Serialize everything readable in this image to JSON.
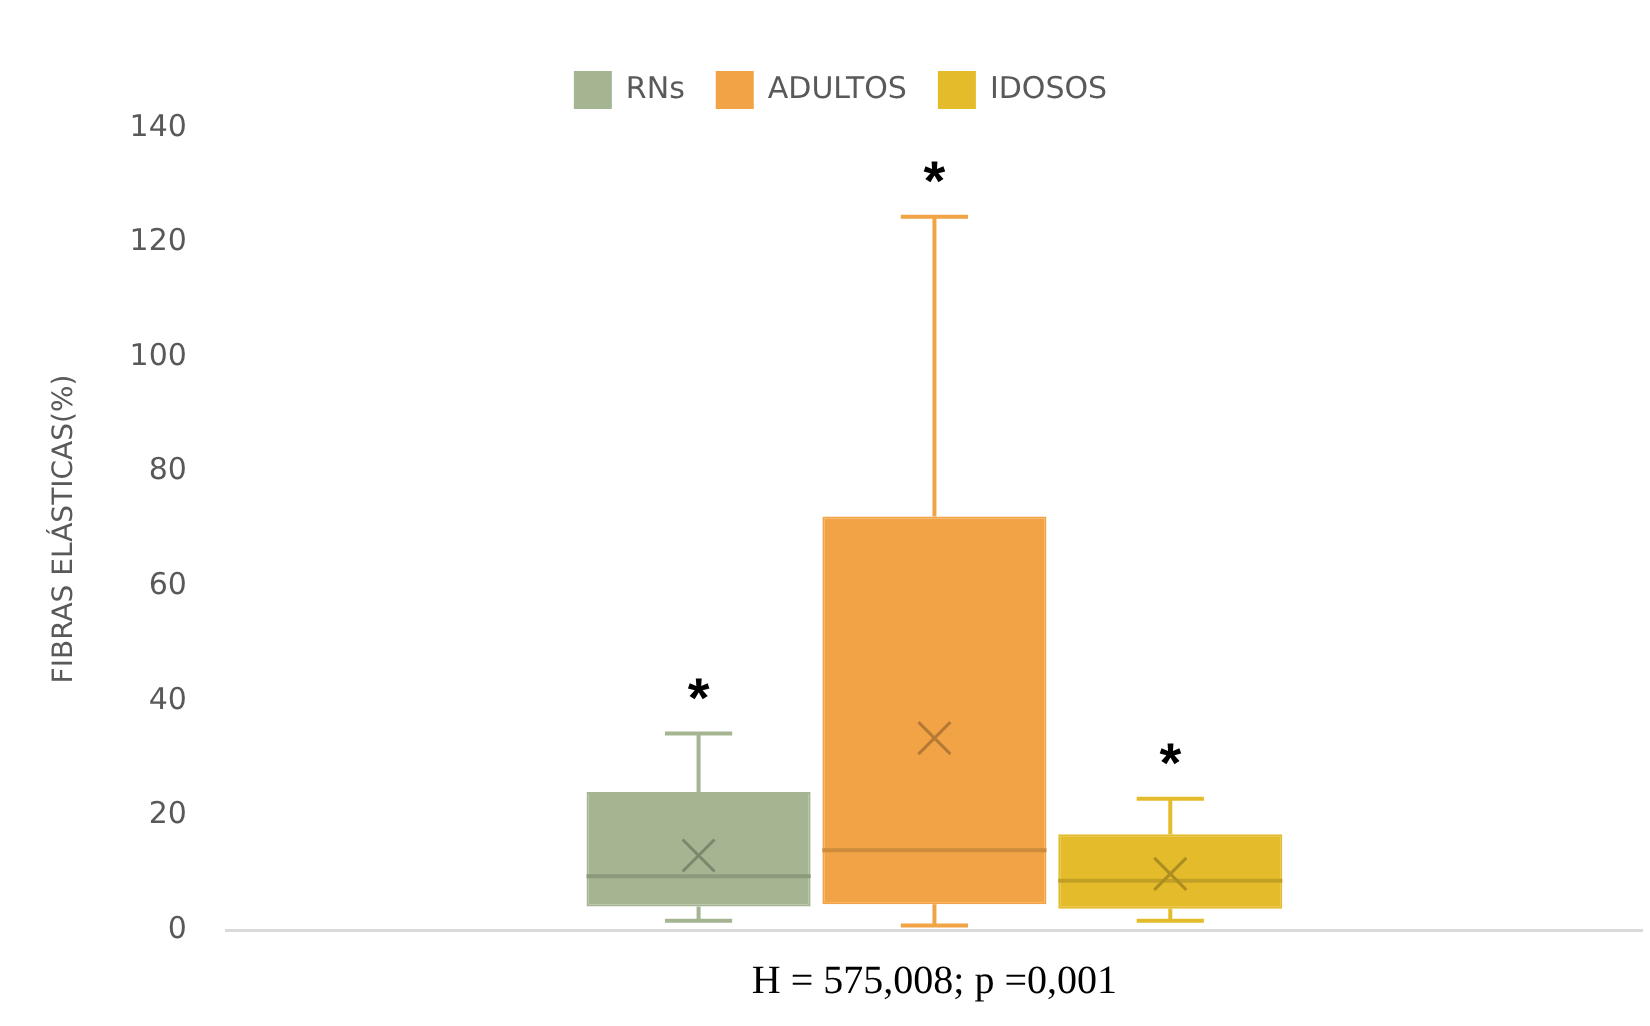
{
  "chart_data": {
    "type": "box",
    "categories": [
      null
    ],
    "ylabel": "FIBRAS ELÁSTICAS(%)",
    "xlabel": "H = 575,008; p =0,001",
    "ylim": [
      0,
      140
    ],
    "yticks": [
      0,
      20,
      40,
      60,
      80,
      100,
      120,
      140
    ],
    "grid": false,
    "legend": "top",
    "tick_labels": "y",
    "annotations": [
      "*",
      "*",
      "*"
    ],
    "series": [
      {
        "name": "RNs",
        "color": "#a5b592",
        "boxes": [
          {
            "low": 1.6,
            "q1": 4.1,
            "median": 9.4,
            "q3": 24.1,
            "high": 34.3,
            "mean": 13
          }
        ]
      },
      {
        "name": "ADULTOS",
        "color": "#f1a346",
        "boxes": [
          {
            "low": 0.8,
            "q1": 4.5,
            "median": 13.9,
            "q3": 72.2,
            "high": 124.5,
            "mean": 33.5
          }
        ]
      },
      {
        "name": "IDOSOS",
        "color": "#e4bc2b",
        "boxes": [
          {
            "low": 1.6,
            "q1": 3.7,
            "median": 8.6,
            "q3": 16.7,
            "high": 22.9,
            "mean": 9.8
          }
        ]
      }
    ]
  }
}
